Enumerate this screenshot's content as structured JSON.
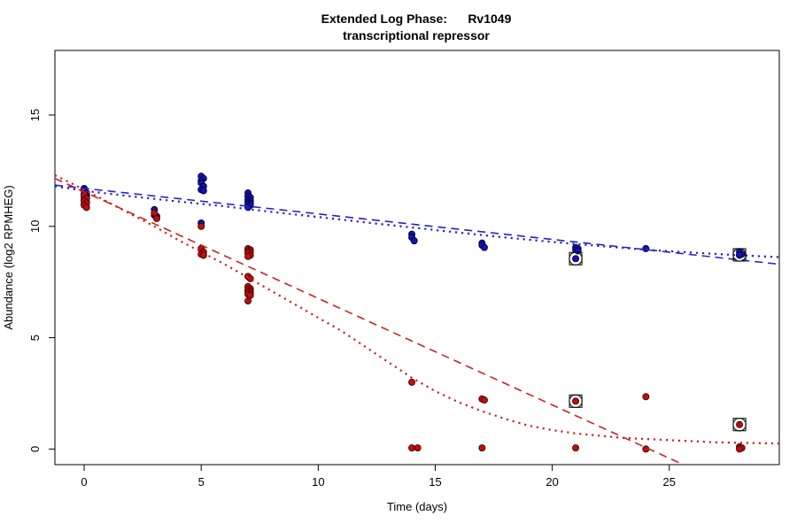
{
  "chart_data": {
    "type": "scatter",
    "title1": "Extended Log Phase:      Rv1049",
    "title2": "transcriptional repressor",
    "xlabel": "Time  (days)",
    "ylabel": "Abundance  (log2 RPMHEG)",
    "xlim": [
      -1.25,
      29.7
    ],
    "ylim": [
      -0.7,
      17.9
    ],
    "xticks": [
      0,
      5,
      10,
      15,
      20,
      25
    ],
    "yticks": [
      0,
      5,
      10,
      15
    ],
    "grid": false,
    "legend": "none",
    "colors": {
      "blue_point_fill": "#1515b0",
      "blue_point_edge": "#00004d",
      "red_point_fill": "#bb1111",
      "red_point_edge": "#550000",
      "blue_line": "#2222cc",
      "red_line": "#cc2222",
      "flag_marker": "#111111"
    },
    "series": [
      {
        "name": "blue-condition",
        "fill": "#1515b0",
        "edge": "#00004d",
        "points": [
          [
            0,
            11.7
          ],
          [
            0,
            11.62
          ],
          [
            0.05,
            11.55
          ],
          [
            0.1,
            11.5
          ],
          [
            0,
            11.45
          ],
          [
            0.1,
            11.4
          ],
          [
            0,
            11.35
          ],
          [
            0.1,
            11.3
          ],
          [
            0,
            11.2
          ],
          [
            0.1,
            11.1
          ],
          [
            0,
            11.0
          ],
          [
            3,
            10.75
          ],
          [
            3,
            10.5
          ],
          [
            3.1,
            10.45
          ],
          [
            5,
            12.25
          ],
          [
            5.1,
            12.15
          ],
          [
            5,
            12.05
          ],
          [
            5,
            11.95
          ],
          [
            5.1,
            11.8
          ],
          [
            5,
            11.65
          ],
          [
            5.1,
            11.6
          ],
          [
            5,
            10.15
          ],
          [
            7,
            11.5
          ],
          [
            7,
            11.35
          ],
          [
            7.1,
            11.3
          ],
          [
            7,
            11.2
          ],
          [
            7.1,
            11.15
          ],
          [
            7,
            11.1
          ],
          [
            7.1,
            11.05
          ],
          [
            7,
            11.0
          ],
          [
            7.1,
            10.95
          ],
          [
            7,
            10.85
          ],
          [
            14,
            9.65
          ],
          [
            14,
            9.5
          ],
          [
            14.1,
            9.35
          ],
          [
            17,
            9.25
          ],
          [
            17,
            9.15
          ],
          [
            17.1,
            9.05
          ],
          [
            21,
            9.05
          ],
          [
            21.1,
            9.0
          ],
          [
            21,
            8.95
          ],
          [
            21.1,
            8.9
          ],
          [
            24,
            9.0
          ],
          [
            28,
            8.85
          ],
          [
            28.1,
            8.75
          ],
          [
            28,
            8.7
          ]
        ],
        "flagged": [
          [
            21,
            8.55
          ],
          [
            28,
            8.72
          ]
        ]
      },
      {
        "name": "red-condition",
        "fill": "#bb1111",
        "edge": "#550000",
        "points": [
          [
            0,
            11.4
          ],
          [
            0.1,
            11.25
          ],
          [
            0,
            11.15
          ],
          [
            0.1,
            11.05
          ],
          [
            0,
            10.95
          ],
          [
            0.1,
            10.85
          ],
          [
            3,
            10.6
          ],
          [
            3.1,
            10.35
          ],
          [
            5,
            10.0
          ],
          [
            5,
            9.0
          ],
          [
            5.1,
            8.85
          ],
          [
            5,
            8.75
          ],
          [
            5.1,
            8.7
          ],
          [
            7,
            9.0
          ],
          [
            7.1,
            8.95
          ],
          [
            7,
            8.9
          ],
          [
            7.1,
            8.85
          ],
          [
            7,
            8.8
          ],
          [
            7.1,
            8.7
          ],
          [
            7,
            8.65
          ],
          [
            7,
            7.75
          ],
          [
            7.1,
            7.65
          ],
          [
            7,
            7.3
          ],
          [
            7.1,
            7.2
          ],
          [
            7,
            7.15
          ],
          [
            7.1,
            7.1
          ],
          [
            7,
            7.05
          ],
          [
            7.1,
            7.0
          ],
          [
            7,
            6.95
          ],
          [
            7.1,
            6.9
          ],
          [
            7,
            6.65
          ],
          [
            14,
            3.0
          ],
          [
            14,
            0.05
          ],
          [
            14.25,
            0.05
          ],
          [
            17,
            2.25
          ],
          [
            17.1,
            2.2
          ],
          [
            17,
            0.05
          ],
          [
            21,
            0.05
          ],
          [
            24,
            2.35
          ],
          [
            24,
            0.0
          ],
          [
            28,
            0.1
          ],
          [
            28.1,
            0.05
          ],
          [
            28,
            0.0
          ]
        ],
        "flagged": [
          [
            21,
            2.15
          ],
          [
            28,
            1.1
          ]
        ]
      }
    ],
    "trend_lines": [
      {
        "name": "blue-dashed-fit",
        "color": "#2222cc",
        "style": "dashed",
        "points": [
          [
            -1.25,
            11.85
          ],
          [
            29.7,
            8.3
          ]
        ]
      },
      {
        "name": "blue-dotted-fit",
        "color": "#2222cc",
        "style": "dotted",
        "points": [
          [
            -1.25,
            11.8
          ],
          [
            0,
            11.6
          ],
          [
            2,
            11.35
          ],
          [
            4,
            11.12
          ],
          [
            6,
            10.9
          ],
          [
            8,
            10.65
          ],
          [
            10,
            10.42
          ],
          [
            12,
            10.18
          ],
          [
            14,
            9.95
          ],
          [
            16,
            9.72
          ],
          [
            18,
            9.5
          ],
          [
            20,
            9.3
          ],
          [
            22,
            9.12
          ],
          [
            24,
            8.95
          ],
          [
            26,
            8.82
          ],
          [
            28,
            8.7
          ],
          [
            29.7,
            8.62
          ]
        ]
      },
      {
        "name": "red-dashed-fit",
        "color": "#cc2222",
        "style": "dashed",
        "points": [
          [
            -1.25,
            12.15
          ],
          [
            25.6,
            -0.7
          ]
        ]
      },
      {
        "name": "red-dotted-fit",
        "color": "#cc2222",
        "style": "dotted",
        "points": [
          [
            -1.25,
            12.3
          ],
          [
            0,
            11.65
          ],
          [
            1,
            11.1
          ],
          [
            2,
            10.55
          ],
          [
            3,
            10.0
          ],
          [
            4,
            9.4
          ],
          [
            5,
            8.85
          ],
          [
            6,
            8.3
          ],
          [
            7,
            7.7
          ],
          [
            8,
            7.1
          ],
          [
            9,
            6.5
          ],
          [
            10,
            5.9
          ],
          [
            11,
            5.3
          ],
          [
            12,
            4.6
          ],
          [
            13,
            3.9
          ],
          [
            14,
            3.2
          ],
          [
            15,
            2.6
          ],
          [
            16,
            2.1
          ],
          [
            17,
            1.7
          ],
          [
            18,
            1.35
          ],
          [
            19,
            1.05
          ],
          [
            20,
            0.85
          ],
          [
            21,
            0.7
          ],
          [
            22,
            0.6
          ],
          [
            23,
            0.5
          ],
          [
            24,
            0.45
          ],
          [
            25,
            0.4
          ],
          [
            26,
            0.35
          ],
          [
            27,
            0.3
          ],
          [
            28,
            0.28
          ],
          [
            29.7,
            0.25
          ]
        ]
      }
    ]
  }
}
